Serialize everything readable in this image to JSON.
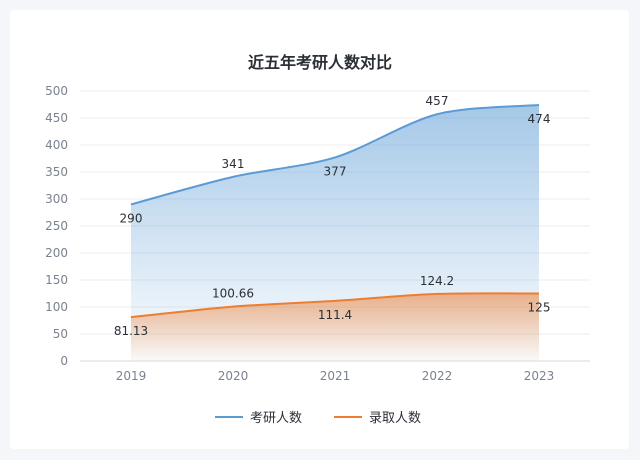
{
  "chart_data": {
    "type": "area",
    "title": "近五年考研人数对比",
    "categories": [
      "2019",
      "2020",
      "2021",
      "2022",
      "2023"
    ],
    "ylim": [
      0,
      500
    ],
    "yticks": [
      0,
      50,
      100,
      150,
      200,
      250,
      300,
      350,
      400,
      450,
      500
    ],
    "grid": true,
    "legend_position": "bottom",
    "series": [
      {
        "name": "考研人数",
        "values": [
          290,
          341,
          377,
          457,
          474
        ],
        "labels": [
          "290",
          "341",
          "377",
          "457",
          "474"
        ],
        "color": "#5b9bd5",
        "fill_color": "#7fb0e0"
      },
      {
        "name": "录取人数",
        "values": [
          81.13,
          100.66,
          111.4,
          124.2,
          125
        ],
        "labels": [
          "81.13",
          "100.66",
          "111.4",
          "124.2",
          "125"
        ],
        "color": "#ed7d31",
        "fill_color": "#f6a36b"
      }
    ]
  }
}
